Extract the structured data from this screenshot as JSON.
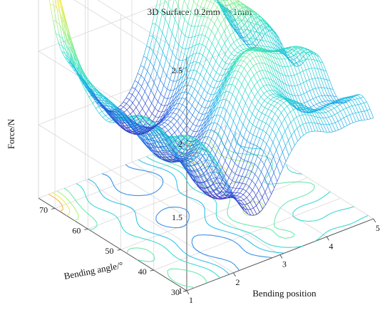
{
  "chart_data": {
    "type": "surface",
    "title": "3D Surface: 0.2mm Y+1mm",
    "title_parts": {
      "prefix": "3D Surface: 0.2mm ",
      "var": "Y",
      "suffix": "+1mm"
    },
    "xlabel": "Bending position",
    "ylabel": "Bending angle/°",
    "zlabel": "Force/N",
    "x_ticks": [
      "1",
      "2",
      "3",
      "4",
      "5"
    ],
    "y_ticks": [
      "30",
      "40",
      "50",
      "60",
      "70"
    ],
    "z_ticks": [
      "1",
      "1.5",
      "2",
      "2.5"
    ],
    "xlim": [
      1,
      5
    ],
    "ylim": [
      30,
      75
    ],
    "zlim": [
      1,
      2.6
    ],
    "colormap": [
      "#3a1fb0",
      "#2a67e6",
      "#1eb8e8",
      "#2fe0c4",
      "#9ff07a",
      "#ffe83a",
      "#ff5a3a"
    ],
    "grid": true,
    "contour_projection": true
  }
}
